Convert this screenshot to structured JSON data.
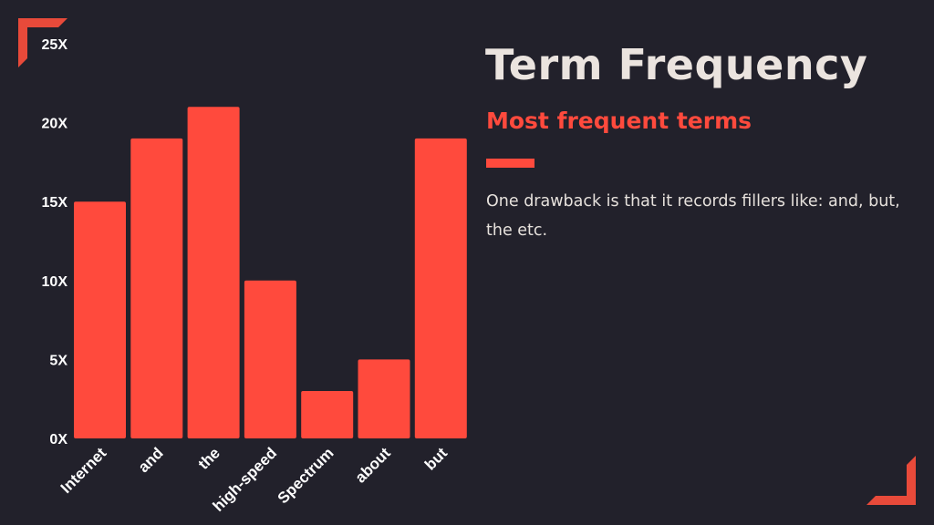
{
  "title": "Term Frequency",
  "subtitle": "Most frequent terms",
  "description": "One drawback is that it records fillers like: and, but, the etc.",
  "colors": {
    "background": "#22212b",
    "accent": "#ff4a3d",
    "title": "#ebe4df",
    "corner": "#e84a3a"
  },
  "chart_data": {
    "type": "bar",
    "categories": [
      "Internet",
      "and",
      "the",
      "high-speed",
      "Spectrum",
      "about",
      "but"
    ],
    "values": [
      15,
      19,
      21,
      10,
      3,
      5,
      19
    ],
    "ylim": [
      0,
      25
    ],
    "yticks": [
      "0X",
      "5X",
      "10X",
      "15X",
      "20X",
      "25X"
    ],
    "xlabel": "",
    "ylabel": "",
    "grid": false,
    "bar_color": "#ff4a3d"
  }
}
